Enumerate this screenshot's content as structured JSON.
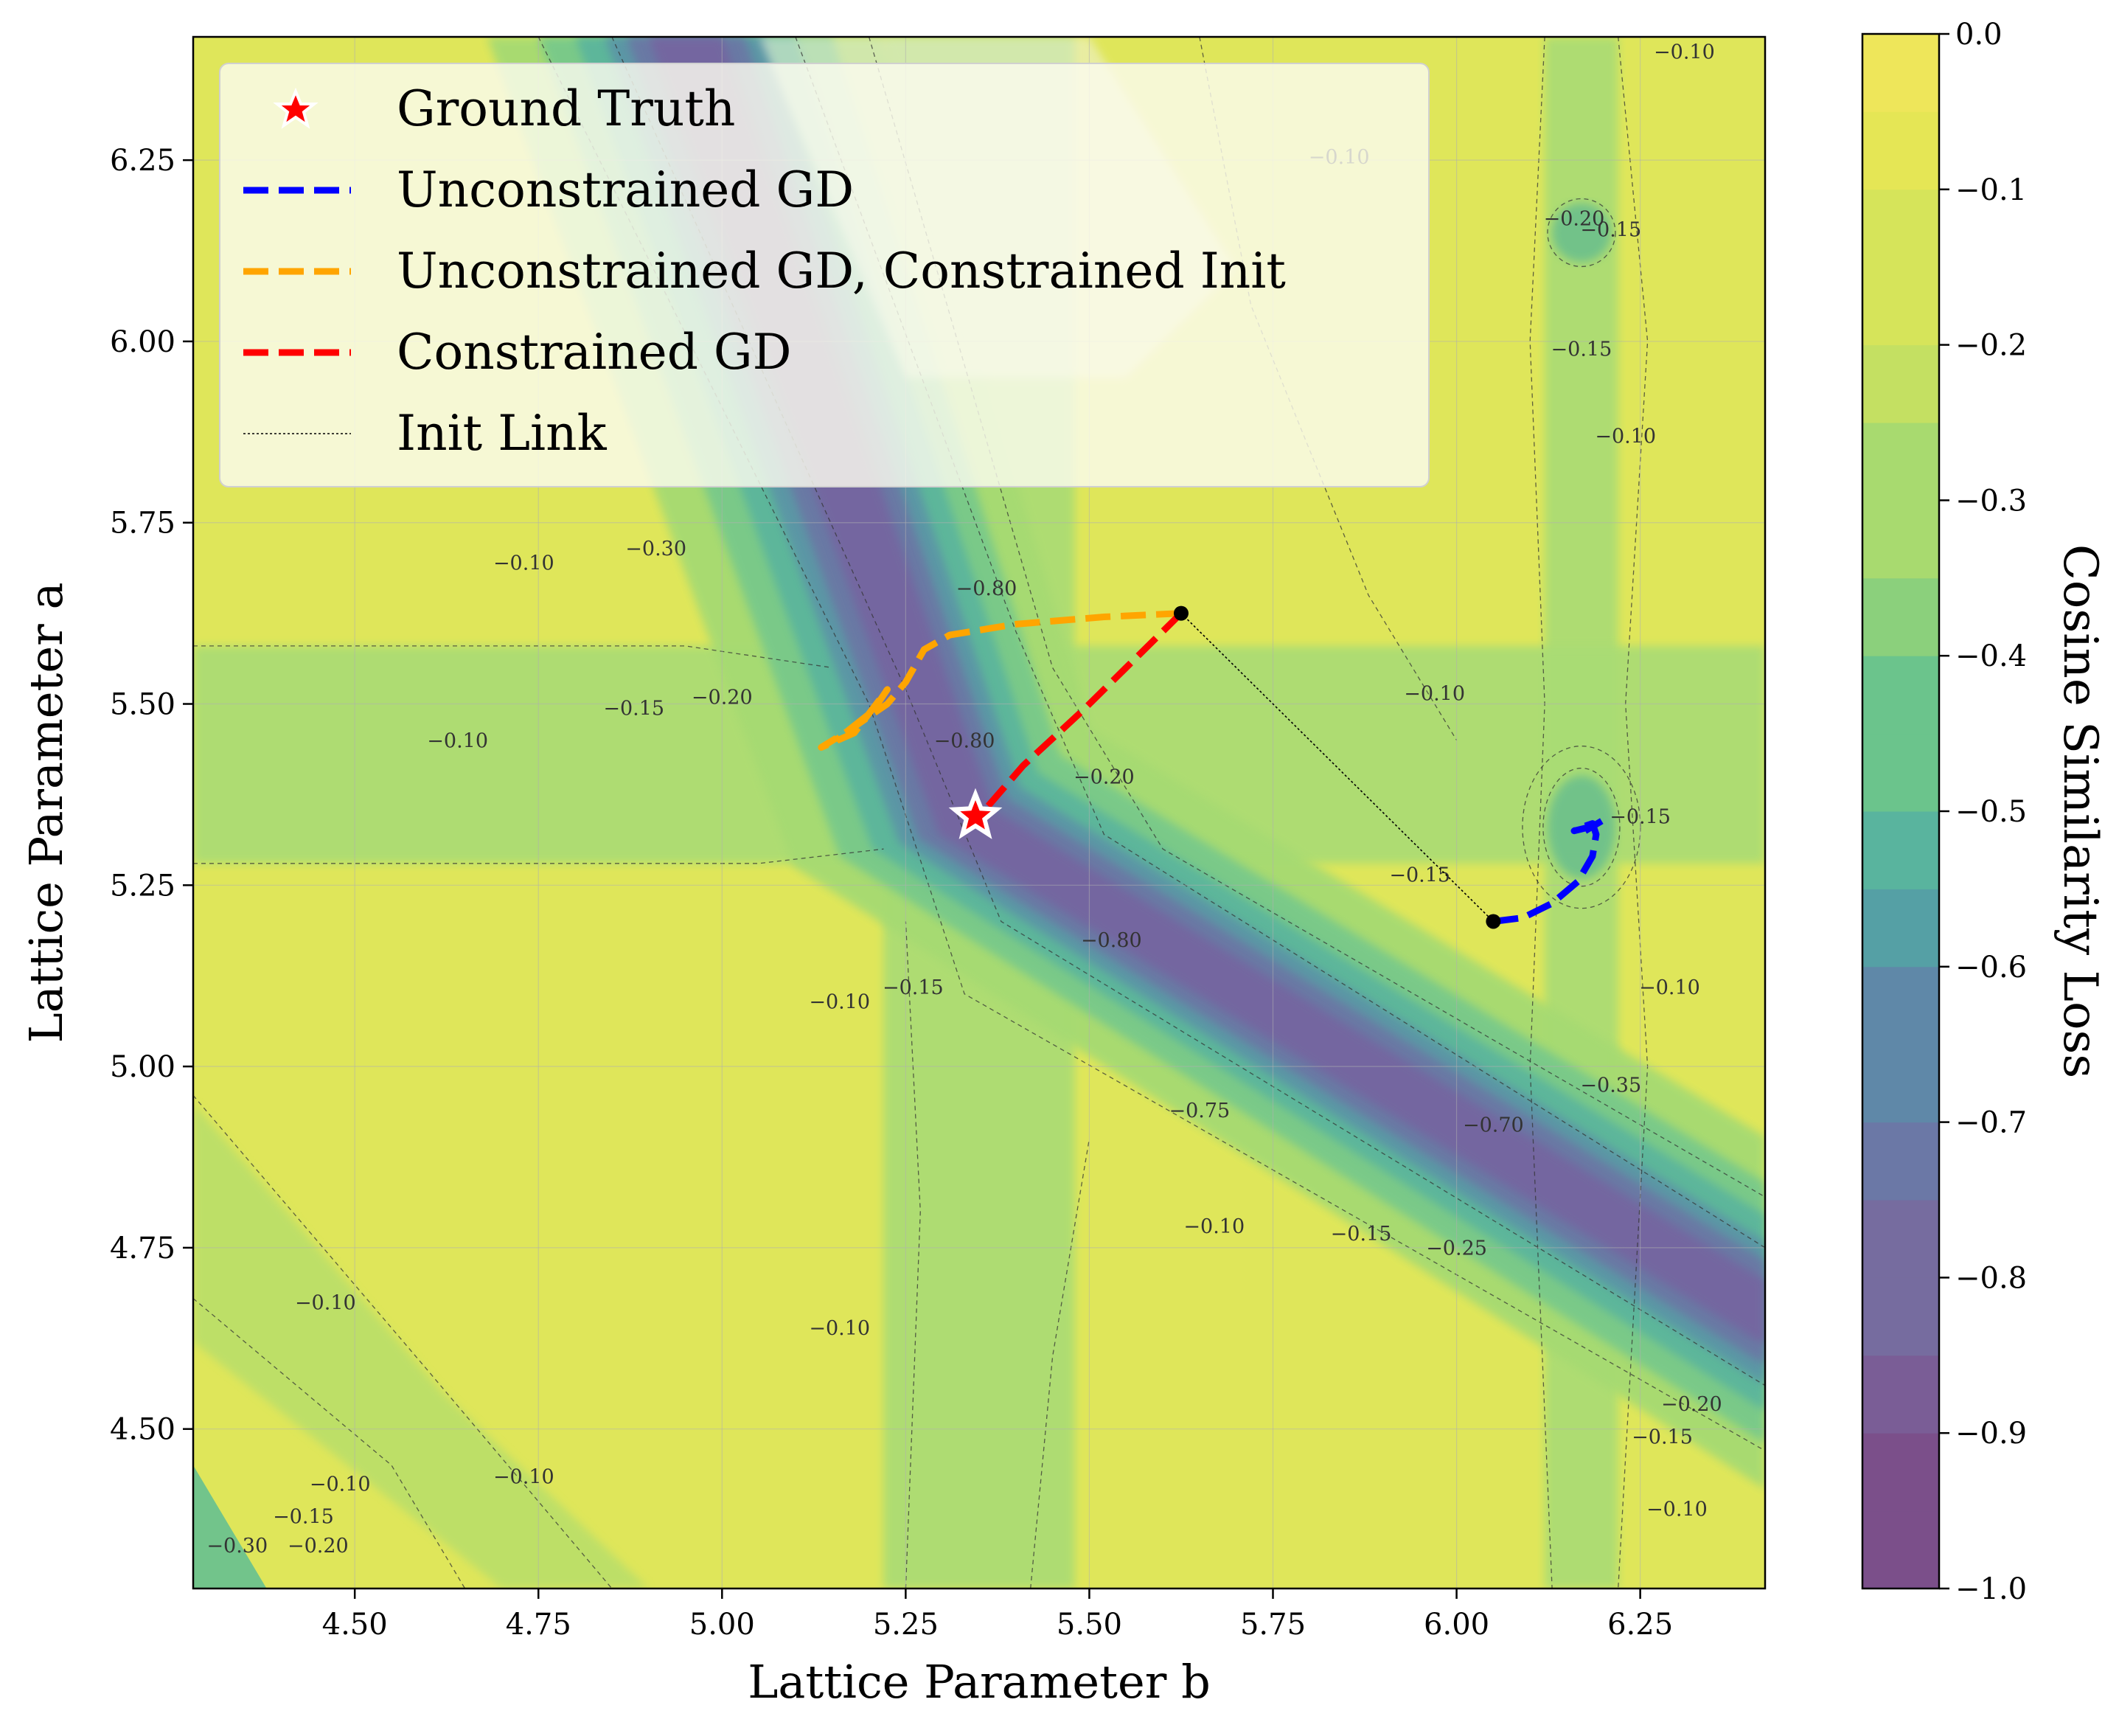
{
  "chart_data": {
    "type": "contour",
    "title": "",
    "xlabel": "Lattice Parameter b",
    "ylabel": "Lattice Parameter a",
    "xlim": [
      4.28,
      6.42
    ],
    "ylim": [
      4.28,
      6.42
    ],
    "xticks": [
      4.5,
      4.75,
      5.0,
      5.25,
      5.5,
      5.75,
      6.0,
      6.25
    ],
    "xtick_labels": [
      "4.50",
      "4.75",
      "5.00",
      "5.25",
      "5.50",
      "5.75",
      "6.00",
      "6.25"
    ],
    "yticks": [
      4.5,
      4.75,
      5.0,
      5.25,
      5.5,
      5.75,
      6.0,
      6.25
    ],
    "ytick_labels": [
      "4.50",
      "4.75",
      "5.00",
      "5.25",
      "5.50",
      "5.75",
      "6.00",
      "6.25"
    ],
    "grid": true,
    "colorbar": {
      "label": "Cosine Similarity Loss",
      "range": [
        -1.0,
        0.0
      ],
      "ticks": [
        0.0,
        -0.1,
        -0.2,
        -0.3,
        -0.4,
        -0.5,
        -0.6,
        -0.7,
        -0.8,
        -0.9,
        -1.0
      ],
      "tick_labels": [
        "0.0",
        "−0.1",
        "−0.2",
        "−0.3",
        "−0.4",
        "−0.5",
        "−0.6",
        "−0.7",
        "−0.8",
        "−0.9",
        "−1.0"
      ],
      "colormap": [
        "#7b4f8a",
        "#7a5d96",
        "#766c9f",
        "#6b78a6",
        "#5f88a8",
        "#55a0a5",
        "#59b49e",
        "#6bc48c",
        "#8bd07c",
        "#a8da6f",
        "#c4e062",
        "#d6e45a",
        "#e5e655",
        "#eee65a"
      ]
    },
    "contour_labels": [
      {
        "text": "−0.10",
        "b": 6.31,
        "a": 6.39
      },
      {
        "text": "−0.10",
        "b": 5.84,
        "a": 6.245
      },
      {
        "text": "−0.20",
        "b": 6.16,
        "a": 6.16
      },
      {
        "text": "−0.15",
        "b": 6.21,
        "a": 6.145
      },
      {
        "text": "−0.15",
        "b": 6.17,
        "a": 5.98
      },
      {
        "text": "−0.10",
        "b": 6.23,
        "a": 5.86
      },
      {
        "text": "−0.10",
        "b": 4.73,
        "a": 5.685
      },
      {
        "text": "−0.30",
        "b": 4.91,
        "a": 5.705
      },
      {
        "text": "−0.80",
        "b": 5.36,
        "a": 5.65
      },
      {
        "text": "−0.10",
        "b": 5.97,
        "a": 5.505
      },
      {
        "text": "−0.15",
        "b": 4.88,
        "a": 5.485
      },
      {
        "text": "−0.20",
        "b": 5.0,
        "a": 5.5
      },
      {
        "text": "−0.10",
        "b": 4.64,
        "a": 5.44
      },
      {
        "text": "−0.80",
        "b": 5.33,
        "a": 5.44
      },
      {
        "text": "−0.20",
        "b": 5.52,
        "a": 5.39
      },
      {
        "text": "−0.15",
        "b": 6.25,
        "a": 5.335
      },
      {
        "text": "−0.15",
        "b": 5.95,
        "a": 5.255
      },
      {
        "text": "−0.80",
        "b": 5.53,
        "a": 5.165
      },
      {
        "text": "−0.10",
        "b": 5.16,
        "a": 5.08
      },
      {
        "text": "−0.15",
        "b": 5.26,
        "a": 5.1
      },
      {
        "text": "−0.10",
        "b": 6.29,
        "a": 5.1
      },
      {
        "text": "−0.75",
        "b": 5.65,
        "a": 4.93
      },
      {
        "text": "−0.35",
        "b": 6.21,
        "a": 4.965
      },
      {
        "text": "−0.70",
        "b": 6.05,
        "a": 4.91
      },
      {
        "text": "−0.10",
        "b": 5.67,
        "a": 4.77
      },
      {
        "text": "−0.15",
        "b": 5.87,
        "a": 4.76
      },
      {
        "text": "−0.25",
        "b": 6.0,
        "a": 4.74
      },
      {
        "text": "−0.10",
        "b": 4.46,
        "a": 4.665
      },
      {
        "text": "−0.10",
        "b": 5.16,
        "a": 4.63
      },
      {
        "text": "−0.20",
        "b": 6.32,
        "a": 4.525
      },
      {
        "text": "−0.15",
        "b": 6.28,
        "a": 4.48
      },
      {
        "text": "−0.10",
        "b": 4.73,
        "a": 4.425
      },
      {
        "text": "−0.10",
        "b": 4.48,
        "a": 4.415
      },
      {
        "text": "−0.15",
        "b": 4.43,
        "a": 4.37
      },
      {
        "text": "−0.20",
        "b": 4.45,
        "a": 4.33
      },
      {
        "text": "−0.30",
        "b": 4.34,
        "a": 4.33
      },
      {
        "text": "−0.10",
        "b": 6.3,
        "a": 4.38
      }
    ],
    "series": [
      {
        "name": "Unconstrained GD",
        "color": "#0000ff",
        "style": "dashed",
        "b": [
          6.05,
          6.09,
          6.13,
          6.165,
          6.185,
          6.19,
          6.185,
          6.17,
          6.16,
          6.18,
          6.2,
          6.175
        ],
        "a": [
          5.2,
          5.205,
          5.225,
          5.255,
          5.29,
          5.32,
          5.335,
          5.33,
          5.325,
          5.33,
          5.34,
          5.325
        ]
      },
      {
        "name": "Unconstrained GD, Constrained Init",
        "color": "#ffa500",
        "style": "dashed",
        "b": [
          5.625,
          5.52,
          5.4,
          5.31,
          5.275,
          5.25,
          5.225,
          5.175,
          5.135,
          5.18,
          5.225,
          5.205,
          5.155
        ],
        "a": [
          5.625,
          5.62,
          5.61,
          5.595,
          5.575,
          5.53,
          5.5,
          5.465,
          5.44,
          5.46,
          5.52,
          5.49,
          5.45
        ]
      },
      {
        "name": "Constrained GD",
        "color": "#ff0000",
        "style": "dashed",
        "b": [
          5.625,
          5.49,
          5.41,
          5.35
        ],
        "a": [
          5.625,
          5.49,
          5.415,
          5.345
        ]
      },
      {
        "name": "Init Link",
        "color": "#000000",
        "style": "dotted",
        "b": [
          5.625,
          6.05
        ],
        "a": [
          5.625,
          5.2
        ]
      }
    ],
    "ground_truth": {
      "name": "Ground Truth",
      "b": 5.345,
      "a": 5.345
    },
    "init_points": [
      {
        "b": 5.625,
        "a": 5.625
      },
      {
        "b": 6.05,
        "a": 5.2
      }
    ],
    "legend": {
      "placement": "top-left",
      "entries": [
        "Ground Truth",
        "Unconstrained GD",
        "Unconstrained GD, Constrained Init",
        "Constrained GD",
        "Init Link"
      ]
    }
  }
}
